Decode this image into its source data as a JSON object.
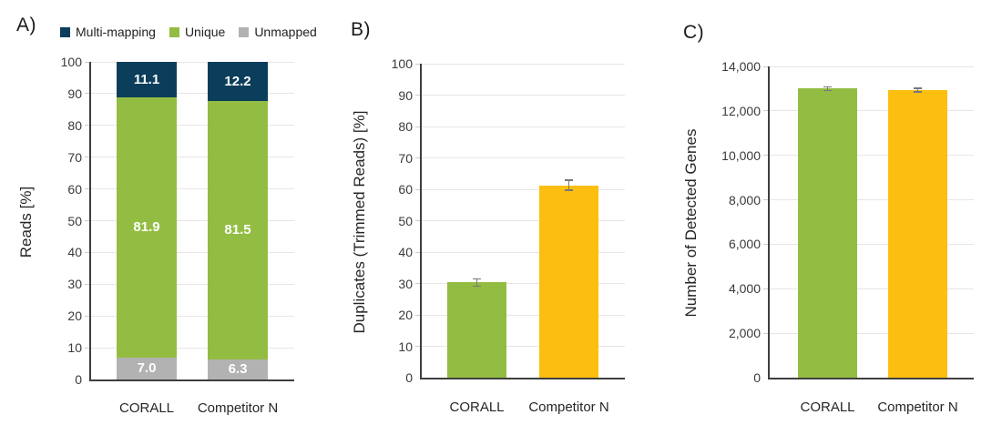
{
  "colors": {
    "multi_mapping": "#0b3e5b",
    "unique": "#93bd42",
    "unmapped": "#b2b2b2",
    "corall": "#93bd42",
    "competitor": "#fcbf10",
    "gridline": "#e6e6e6",
    "axis": "#3e3e3e",
    "error_bar": "#787878",
    "bar_value_text": "#ffffff"
  },
  "chart_data": [
    {
      "id": "a",
      "panel_label": "A)",
      "type": "bar",
      "subtype": "stacked",
      "ylabel": "Reads [%]",
      "ylim": [
        0,
        100
      ],
      "yticks": [
        0,
        10,
        20,
        30,
        40,
        50,
        60,
        70,
        80,
        90,
        100
      ],
      "ytick_labels": [
        "0",
        "10",
        "20",
        "30",
        "40",
        "50",
        "60",
        "70",
        "80",
        "90",
        "100"
      ],
      "grid": true,
      "legend_position": "top",
      "categories": [
        "CORALL",
        "Competitor N"
      ],
      "legend": [
        {
          "label": "Multi-mapping",
          "color": "#0b3e5b"
        },
        {
          "label": "Unique",
          "color": "#93bd42"
        },
        {
          "label": "Unmapped",
          "color": "#b2b2b2"
        }
      ],
      "series": [
        {
          "name": "Unmapped",
          "color": "#b2b2b2",
          "values": [
            7.0,
            6.3
          ],
          "value_labels": [
            "7.0",
            "6.3"
          ]
        },
        {
          "name": "Unique",
          "color": "#93bd42",
          "values": [
            81.9,
            81.5
          ],
          "value_labels": [
            "81.9",
            "81.5"
          ]
        },
        {
          "name": "Multi-mapping",
          "color": "#0b3e5b",
          "values": [
            11.1,
            12.2
          ],
          "value_labels": [
            "11.1",
            "12.2"
          ]
        }
      ]
    },
    {
      "id": "b",
      "panel_label": "B)",
      "type": "bar",
      "subtype": "simple",
      "ylabel": "Duplicates (Trimmed Reads) [%]",
      "ylim": [
        0,
        100
      ],
      "yticks": [
        0,
        10,
        20,
        30,
        40,
        50,
        60,
        70,
        80,
        90,
        100
      ],
      "ytick_labels": [
        "0",
        "10",
        "20",
        "30",
        "40",
        "50",
        "60",
        "70",
        "80",
        "90",
        "100"
      ],
      "grid": true,
      "categories": [
        "CORALL",
        "Competitor N"
      ],
      "values": [
        30.3,
        61.3
      ],
      "errors": [
        1.2,
        1.6
      ],
      "bar_colors": [
        "#93bd42",
        "#fcbf10"
      ]
    },
    {
      "id": "c",
      "panel_label": "C)",
      "type": "bar",
      "subtype": "simple",
      "ylabel": "Number of Detected Genes",
      "ylim": [
        0,
        14000
      ],
      "yticks": [
        0,
        2000,
        4000,
        6000,
        8000,
        10000,
        12000,
        14000
      ],
      "ytick_labels": [
        "0",
        "2,000",
        "4,000",
        "6,000",
        "8,000",
        "10,000",
        "12,000",
        "14,000"
      ],
      "grid": true,
      "categories": [
        "CORALL",
        "Competitor N"
      ],
      "values": [
        13000,
        12940
      ],
      "errors": [
        80,
        80
      ],
      "bar_colors": [
        "#93bd42",
        "#fcbf10"
      ]
    }
  ]
}
